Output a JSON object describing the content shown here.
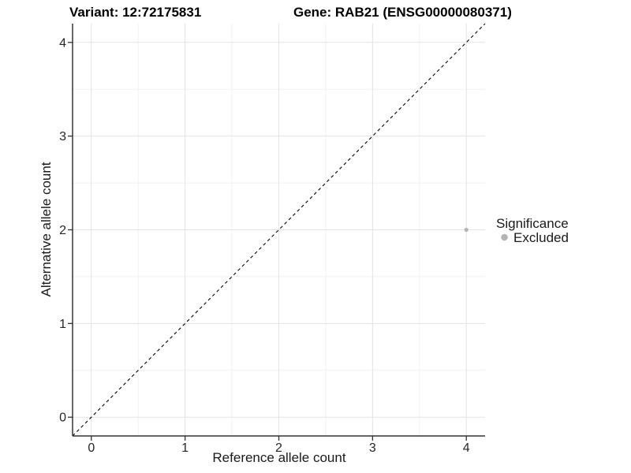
{
  "chart_data": {
    "type": "scatter",
    "titles": {
      "left": "Variant: 12:72175831",
      "right": "Gene: RAB21 (ENSG00000080371)"
    },
    "xlabel": "Reference allele count",
    "ylabel": "Alternative allele count",
    "xlim": [
      -0.2,
      4.2
    ],
    "ylim": [
      -0.2,
      4.2
    ],
    "x_ticks": [
      0,
      1,
      2,
      3,
      4
    ],
    "y_ticks": [
      0,
      1,
      2,
      3,
      4
    ],
    "x_minor": [
      0.5,
      1.5,
      2.5,
      3.5
    ],
    "y_minor": [
      0.5,
      1.5,
      2.5,
      3.5
    ],
    "grid": true,
    "reference_line": {
      "kind": "identity",
      "style": "dashed",
      "color": "#000000"
    },
    "series": [
      {
        "name": "Excluded",
        "color": "#b4b4b4",
        "marker": "circle",
        "points": [
          {
            "x": 4,
            "y": 2
          }
        ]
      }
    ],
    "legend": {
      "position": "right",
      "title": "Significance",
      "items": [
        {
          "label": "Excluded",
          "color": "#b4b4b4"
        }
      ]
    },
    "colors": {
      "panel_bg": "#ffffff",
      "grid_major": "#e3e3e3",
      "grid_minor": "#f1f1f1",
      "axis_line": "#333333",
      "tick_mark": "#333333"
    }
  }
}
